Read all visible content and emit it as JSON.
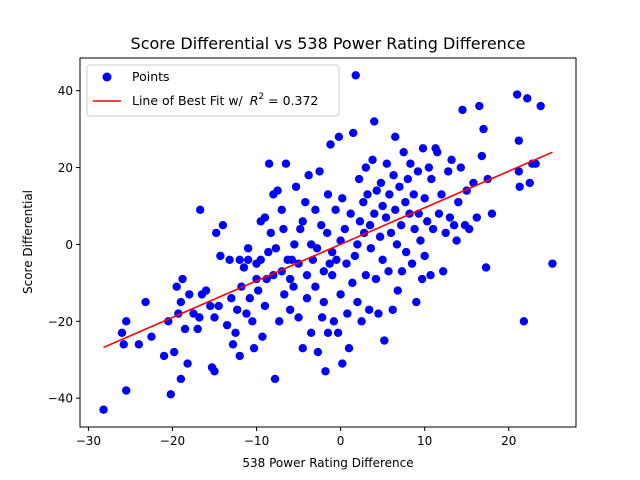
{
  "chart_data": {
    "type": "scatter",
    "title": "Score Differential vs 538 Power Rating Difference",
    "xlabel": "538 Power Rating Difference",
    "ylabel": "Score Differential",
    "xlim": [
      -31,
      28
    ],
    "ylim": [
      -47.5,
      48.5
    ],
    "xticks": [
      -30,
      -20,
      -10,
      0,
      10,
      20
    ],
    "yticks": [
      -40,
      -20,
      0,
      20,
      40
    ],
    "grid": false,
    "legend": {
      "placement": "top-left",
      "entries": [
        {
          "label": "Points",
          "marker": "circle",
          "color": "#0000ff"
        },
        {
          "label_prefix": "Line of Best Fit w/ ",
          "label_math": "R",
          "label_sup": "2",
          "label_suffix": " = 0.372",
          "marker": "line",
          "color": "#ff0000"
        }
      ]
    },
    "series": [
      {
        "name": "Points",
        "color": "#0000ff",
        "points": [
          [
            -28.2,
            -43
          ],
          [
            -25.5,
            -38
          ],
          [
            -26,
            -23
          ],
          [
            -25.8,
            -26
          ],
          [
            -25.5,
            -20
          ],
          [
            -24,
            -26
          ],
          [
            -23.2,
            -15
          ],
          [
            -22.5,
            -24
          ],
          [
            -21,
            -29
          ],
          [
            -20.5,
            -20
          ],
          [
            -20.2,
            -39
          ],
          [
            -19.8,
            -28
          ],
          [
            -19.5,
            -11
          ],
          [
            -19.3,
            -18
          ],
          [
            -19,
            -35
          ],
          [
            -19,
            -15
          ],
          [
            -18.8,
            -9
          ],
          [
            -18.5,
            -22
          ],
          [
            -18.2,
            -31
          ],
          [
            -18,
            -13
          ],
          [
            -17.5,
            -18
          ],
          [
            -17,
            -22
          ],
          [
            -16.8,
            -19
          ],
          [
            -16.5,
            -13
          ],
          [
            -16.7,
            9
          ],
          [
            -16,
            -12
          ],
          [
            -15.5,
            -16
          ],
          [
            -15.3,
            -32
          ],
          [
            -15,
            -33
          ],
          [
            -15,
            -19
          ],
          [
            -14.8,
            3
          ],
          [
            -14.5,
            -16
          ],
          [
            -14.3,
            -3
          ],
          [
            -14,
            5
          ],
          [
            -13.5,
            -21
          ],
          [
            -13.2,
            -4
          ],
          [
            -13,
            -14
          ],
          [
            -12.8,
            -26
          ],
          [
            -12.5,
            -23
          ],
          [
            -12.3,
            -17
          ],
          [
            -12,
            -29
          ],
          [
            -12,
            -4
          ],
          [
            -11.8,
            -11
          ],
          [
            -11.5,
            -6
          ],
          [
            -11.2,
            -18
          ],
          [
            -11,
            -1
          ],
          [
            -11,
            -4
          ],
          [
            -10.8,
            -14
          ],
          [
            -10.5,
            -20
          ],
          [
            -10.3,
            -27
          ],
          [
            -10,
            -9
          ],
          [
            -10,
            -5
          ],
          [
            -9.8,
            -12
          ],
          [
            -9.5,
            -4
          ],
          [
            -9.5,
            6
          ],
          [
            -9.3,
            -24
          ],
          [
            -9,
            7
          ],
          [
            -9,
            -16
          ],
          [
            -8.8,
            -9
          ],
          [
            -8.6,
            -2
          ],
          [
            -8.5,
            21
          ],
          [
            -8.3,
            3
          ],
          [
            -8,
            13
          ],
          [
            -8,
            -8
          ],
          [
            -7.8,
            -35
          ],
          [
            -7.7,
            -1
          ],
          [
            -7.5,
            14
          ],
          [
            -7.3,
            -20
          ],
          [
            -7,
            -7
          ],
          [
            -7,
            9
          ],
          [
            -6.8,
            4
          ],
          [
            -6.7,
            -13
          ],
          [
            -6.5,
            21
          ],
          [
            -6.3,
            -4
          ],
          [
            -6,
            -9
          ],
          [
            -6,
            -17
          ],
          [
            -5.8,
            -4
          ],
          [
            -5.6,
            -11
          ],
          [
            -5.5,
            0
          ],
          [
            -5.3,
            15
          ],
          [
            -5,
            -19
          ],
          [
            -5,
            -5
          ],
          [
            -4.8,
            4
          ],
          [
            -4.5,
            -27
          ],
          [
            -4.5,
            6
          ],
          [
            -4.2,
            11
          ],
          [
            -4,
            -14
          ],
          [
            -4,
            -8
          ],
          [
            -3.8,
            18
          ],
          [
            -3.5,
            0
          ],
          [
            -3.5,
            -23
          ],
          [
            -3.3,
            -4
          ],
          [
            -3,
            9
          ],
          [
            -3,
            -11
          ],
          [
            -2.8,
            -1
          ],
          [
            -2.7,
            -28
          ],
          [
            -2.5,
            19
          ],
          [
            -2.3,
            5
          ],
          [
            -2.2,
            -19
          ],
          [
            -2,
            -15
          ],
          [
            -2,
            -7
          ],
          [
            -1.8,
            -33
          ],
          [
            -1.6,
            3
          ],
          [
            -1.5,
            -23
          ],
          [
            -1.5,
            13
          ],
          [
            -1.3,
            -5
          ],
          [
            -1.2,
            26
          ],
          [
            -1,
            -8
          ],
          [
            -1,
            -2
          ],
          [
            -0.8,
            -20
          ],
          [
            -0.6,
            9
          ],
          [
            -0.5,
            -4
          ],
          [
            -0.3,
            -23
          ],
          [
            -0.2,
            28
          ],
          [
            0,
            1
          ],
          [
            0,
            -13
          ],
          [
            0.2,
            -31
          ],
          [
            0.2,
            12
          ],
          [
            0.5,
            4
          ],
          [
            0.7,
            -5
          ],
          [
            0.8,
            -18
          ],
          [
            1,
            -27
          ],
          [
            1.2,
            8
          ],
          [
            1.4,
            -10
          ],
          [
            1.5,
            29
          ],
          [
            1.7,
            -3
          ],
          [
            1.8,
            44
          ],
          [
            2,
            0
          ],
          [
            2,
            -15
          ],
          [
            2.2,
            17
          ],
          [
            2.3,
            6
          ],
          [
            2.5,
            -20
          ],
          [
            2.7,
            11
          ],
          [
            2.8,
            3
          ],
          [
            3,
            -8
          ],
          [
            3,
            20
          ],
          [
            3.2,
            13
          ],
          [
            3.4,
            -17
          ],
          [
            3.5,
            5
          ],
          [
            3.6,
            -1
          ],
          [
            3.8,
            22
          ],
          [
            4,
            32
          ],
          [
            4,
            8
          ],
          [
            4.2,
            -9
          ],
          [
            4.3,
            14
          ],
          [
            4.5,
            -18
          ],
          [
            4.7,
            2
          ],
          [
            4.8,
            16
          ],
          [
            5,
            -4
          ],
          [
            5,
            10
          ],
          [
            5.2,
            -25
          ],
          [
            5.4,
            7
          ],
          [
            5.5,
            21
          ],
          [
            5.7,
            -7
          ],
          [
            5.8,
            13
          ],
          [
            6,
            3
          ],
          [
            6.2,
            -17
          ],
          [
            6.3,
            18
          ],
          [
            6.5,
            28
          ],
          [
            6.5,
            9
          ],
          [
            6.7,
            0
          ],
          [
            6.8,
            -12
          ],
          [
            7,
            15
          ],
          [
            7.2,
            5
          ],
          [
            7.3,
            -7
          ],
          [
            7.5,
            24
          ],
          [
            7.7,
            11
          ],
          [
            7.8,
            -2
          ],
          [
            8,
            17
          ],
          [
            8.2,
            8
          ],
          [
            8.3,
            21
          ],
          [
            8.5,
            -5
          ],
          [
            8.7,
            13
          ],
          [
            8.8,
            4
          ],
          [
            9,
            -15
          ],
          [
            9.2,
            19
          ],
          [
            9.3,
            8
          ],
          [
            9.5,
            1
          ],
          [
            9.7,
            -9
          ],
          [
            9.8,
            25
          ],
          [
            10,
            12
          ],
          [
            10,
            -3
          ],
          [
            10.3,
            6
          ],
          [
            10.5,
            20
          ],
          [
            10.7,
            -8
          ],
          [
            10.8,
            17
          ],
          [
            11,
            4
          ],
          [
            11.3,
            25
          ],
          [
            11.5,
            24
          ],
          [
            11.7,
            8
          ],
          [
            12,
            13
          ],
          [
            12.2,
            -7
          ],
          [
            12.5,
            3
          ],
          [
            12.8,
            19
          ],
          [
            13,
            7
          ],
          [
            13.2,
            22
          ],
          [
            13.5,
            5
          ],
          [
            13.8,
            1
          ],
          [
            14,
            11
          ],
          [
            14.3,
            20
          ],
          [
            14.5,
            35
          ],
          [
            14.8,
            5
          ],
          [
            15,
            14
          ],
          [
            15.3,
            4
          ],
          [
            15.8,
            16
          ],
          [
            16.2,
            7
          ],
          [
            16.5,
            36
          ],
          [
            16.8,
            23
          ],
          [
            17,
            30
          ],
          [
            17.3,
            -6
          ],
          [
            17.5,
            17
          ],
          [
            18,
            8
          ],
          [
            21,
            39
          ],
          [
            21.2,
            27
          ],
          [
            21.2,
            19
          ],
          [
            21.3,
            15
          ],
          [
            21.8,
            -20
          ],
          [
            22.2,
            38
          ],
          [
            22.5,
            16
          ],
          [
            22.8,
            21
          ],
          [
            23.2,
            21
          ],
          [
            23.8,
            36
          ],
          [
            25.2,
            -5
          ]
        ]
      },
      {
        "name": "Line of Best Fit w/ R^2 = 0.372",
        "color": "#ff0000",
        "type": "line",
        "x": [
          -28.2,
          25.2
        ],
        "y": [
          -26.8,
          24
        ]
      }
    ]
  }
}
